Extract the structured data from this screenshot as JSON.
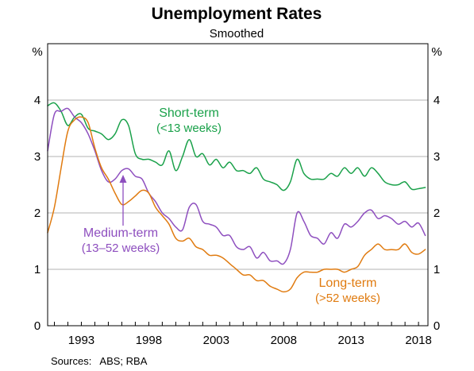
{
  "chart_data": {
    "type": "line",
    "title": "Unemployment Rates",
    "subtitle": "Smoothed",
    "y_unit_left": "%",
    "y_unit_right": "%",
    "ylim": [
      0,
      5
    ],
    "yticks": [
      0,
      1,
      2,
      3,
      4
    ],
    "xlim": [
      1990.5,
      2018.7
    ],
    "xticks": [
      1993,
      1998,
      2003,
      2008,
      2013,
      2018
    ],
    "grid": true,
    "source": "Sources:   ABS; RBA",
    "series": [
      {
        "name": "Short-term",
        "name_line2": "(<13 weeks)",
        "color": "#1aa14a",
        "x": [
          1990.5,
          1991.0,
          1991.5,
          1992.0,
          1992.5,
          1993.0,
          1993.5,
          1994.0,
          1994.5,
          1995.0,
          1995.5,
          1996.0,
          1996.5,
          1997.0,
          1997.5,
          1998.0,
          1998.5,
          1999.0,
          1999.5,
          2000.0,
          2000.5,
          2001.0,
          2001.5,
          2002.0,
          2002.5,
          2003.0,
          2003.5,
          2004.0,
          2004.5,
          2005.0,
          2005.5,
          2006.0,
          2006.5,
          2007.0,
          2007.5,
          2008.0,
          2008.5,
          2009.0,
          2009.5,
          2010.0,
          2010.5,
          2011.0,
          2011.5,
          2012.0,
          2012.5,
          2013.0,
          2013.5,
          2014.0,
          2014.5,
          2015.0,
          2015.5,
          2016.0,
          2016.5,
          2017.0,
          2017.5,
          2018.0,
          2018.5
        ],
        "values": [
          3.9,
          3.95,
          3.8,
          3.55,
          3.7,
          3.75,
          3.5,
          3.45,
          3.4,
          3.3,
          3.4,
          3.65,
          3.55,
          3.05,
          2.95,
          2.95,
          2.9,
          2.85,
          3.1,
          2.75,
          3.0,
          3.3,
          3.0,
          3.05,
          2.85,
          2.95,
          2.8,
          2.9,
          2.75,
          2.75,
          2.7,
          2.8,
          2.6,
          2.55,
          2.5,
          2.4,
          2.55,
          2.95,
          2.7,
          2.6,
          2.6,
          2.6,
          2.7,
          2.65,
          2.8,
          2.7,
          2.8,
          2.65,
          2.8,
          2.7,
          2.55,
          2.5,
          2.5,
          2.55,
          2.42,
          2.43,
          2.45
        ]
      },
      {
        "name": "Medium-term",
        "name_line2": "(13–52 weeks)",
        "color": "#8e4fbf",
        "x": [
          1990.5,
          1991.0,
          1991.5,
          1992.0,
          1992.5,
          1993.0,
          1993.5,
          1994.0,
          1994.5,
          1995.0,
          1995.5,
          1996.0,
          1996.5,
          1997.0,
          1997.5,
          1998.0,
          1998.5,
          1999.0,
          1999.5,
          2000.0,
          2000.5,
          2001.0,
          2001.5,
          2002.0,
          2002.5,
          2003.0,
          2003.5,
          2004.0,
          2004.5,
          2005.0,
          2005.5,
          2006.0,
          2006.5,
          2007.0,
          2007.5,
          2008.0,
          2008.5,
          2009.0,
          2009.5,
          2010.0,
          2010.5,
          2011.0,
          2011.5,
          2012.0,
          2012.5,
          2013.0,
          2013.5,
          2014.0,
          2014.5,
          2015.0,
          2015.5,
          2016.0,
          2016.5,
          2017.0,
          2017.5,
          2018.0,
          2018.5
        ],
        "values": [
          3.1,
          3.75,
          3.8,
          3.85,
          3.7,
          3.6,
          3.4,
          3.1,
          2.75,
          2.55,
          2.6,
          2.75,
          2.78,
          2.65,
          2.6,
          2.35,
          2.2,
          2.0,
          1.9,
          1.75,
          1.7,
          2.1,
          2.15,
          1.85,
          1.8,
          1.75,
          1.6,
          1.6,
          1.4,
          1.35,
          1.4,
          1.2,
          1.3,
          1.15,
          1.15,
          1.1,
          1.35,
          2.0,
          1.85,
          1.6,
          1.55,
          1.45,
          1.65,
          1.55,
          1.8,
          1.75,
          1.85,
          2.0,
          2.05,
          1.9,
          1.95,
          1.9,
          1.8,
          1.85,
          1.75,
          1.82,
          1.6
        ]
      },
      {
        "name": "Long-term",
        "name_line2": "(>52 weeks)",
        "color": "#e07b10",
        "x": [
          1990.5,
          1991.0,
          1991.5,
          1992.0,
          1992.5,
          1993.0,
          1993.5,
          1994.0,
          1994.5,
          1995.0,
          1995.5,
          1996.0,
          1996.5,
          1997.0,
          1997.5,
          1998.0,
          1998.5,
          1999.0,
          1999.5,
          2000.0,
          2000.5,
          2001.0,
          2001.5,
          2002.0,
          2002.5,
          2003.0,
          2003.5,
          2004.0,
          2004.5,
          2005.0,
          2005.5,
          2006.0,
          2006.5,
          2007.0,
          2007.5,
          2008.0,
          2008.5,
          2009.0,
          2009.5,
          2010.0,
          2010.5,
          2011.0,
          2011.5,
          2012.0,
          2012.5,
          2013.0,
          2013.5,
          2014.0,
          2014.5,
          2015.0,
          2015.5,
          2016.0,
          2016.5,
          2017.0,
          2017.5,
          2018.0,
          2018.5
        ],
        "values": [
          1.65,
          2.1,
          2.8,
          3.45,
          3.65,
          3.7,
          3.6,
          3.15,
          2.8,
          2.6,
          2.35,
          2.15,
          2.2,
          2.3,
          2.4,
          2.35,
          2.1,
          1.95,
          1.8,
          1.55,
          1.5,
          1.55,
          1.4,
          1.35,
          1.25,
          1.25,
          1.2,
          1.1,
          1.0,
          0.9,
          0.9,
          0.8,
          0.8,
          0.7,
          0.65,
          0.6,
          0.65,
          0.85,
          0.95,
          0.95,
          0.95,
          1.0,
          1.0,
          1.0,
          0.95,
          1.0,
          1.05,
          1.25,
          1.35,
          1.45,
          1.35,
          1.35,
          1.35,
          1.45,
          1.3,
          1.27,
          1.35
        ]
      }
    ]
  }
}
